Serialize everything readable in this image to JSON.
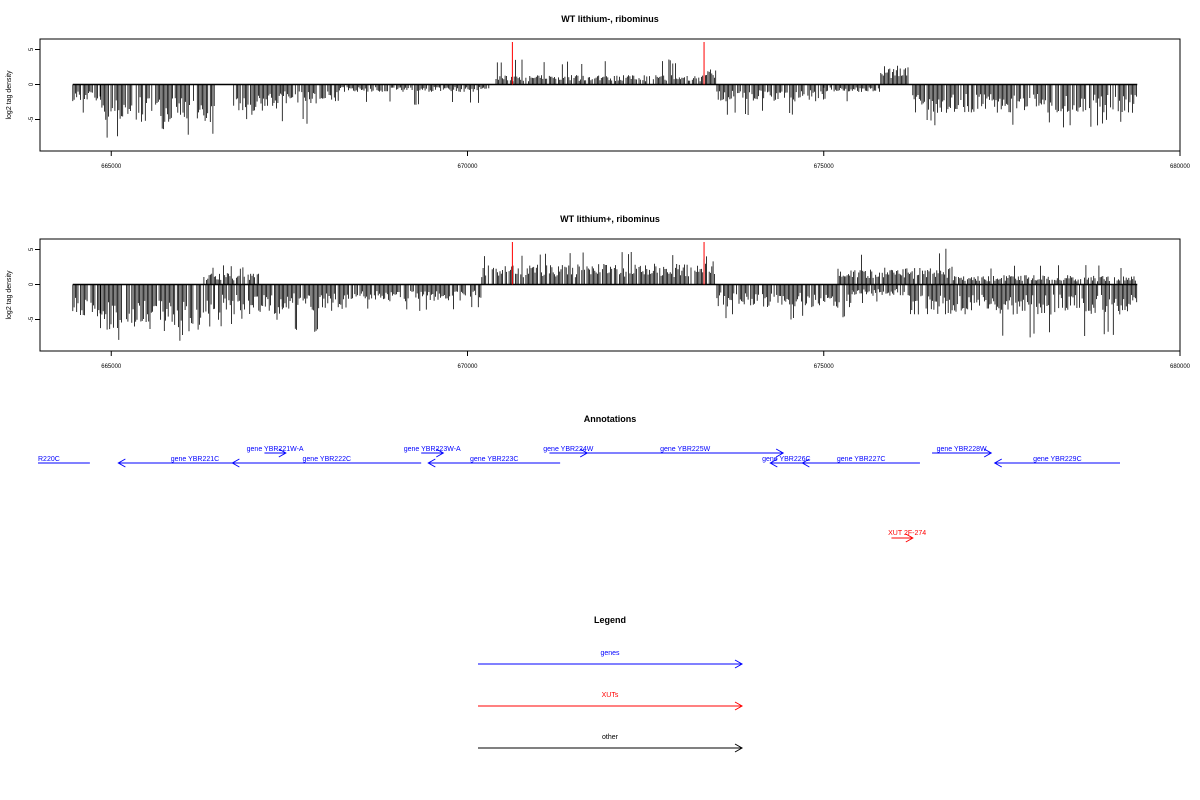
{
  "colors": {
    "gene": "#0000ff",
    "xut": "#ff0000",
    "other": "#000000",
    "boundary": "#ff0000",
    "signal": "#000000"
  },
  "chart_data": [
    {
      "type": "bar",
      "title": "WT lithium-, ribominus",
      "ylabel": "log2 tag density",
      "xlim": [
        664000,
        680000
      ],
      "ylim": [
        -9.5,
        6.5
      ],
      "xticks": [
        "665000",
        "670000",
        "675000",
        "680000"
      ],
      "yticks": [
        "5",
        "0",
        "-5"
      ],
      "xtick_values": [
        665000,
        670000,
        675000,
        680000
      ],
      "ytick_values": [
        5,
        0,
        -5
      ],
      "baseline": 0,
      "region_boundaries": [
        670630,
        673320
      ],
      "segments": [
        {
          "start": 664460,
          "end": 664850,
          "sign": -1,
          "mean": 2.0,
          "max": 4.2
        },
        {
          "start": 664850,
          "end": 665350,
          "sign": -1,
          "mean": 3.8,
          "max": 7.6
        },
        {
          "start": 665350,
          "end": 666450,
          "sign": -1,
          "mean": 4.0,
          "max": 7.2
        },
        {
          "start": 666700,
          "end": 667400,
          "sign": -1,
          "mean": 2.8,
          "max": 5.0
        },
        {
          "start": 667400,
          "end": 668200,
          "sign": -1,
          "mean": 2.0,
          "max": 6.0
        },
        {
          "start": 668200,
          "end": 670300,
          "sign": -1,
          "mean": 0.8,
          "max": 3.0
        },
        {
          "start": 670400,
          "end": 673320,
          "sign": 1,
          "mean": 1.0,
          "max": 3.6
        },
        {
          "start": 673320,
          "end": 673500,
          "sign": 1,
          "mean": 2.0,
          "max": 4.0
        },
        {
          "start": 673500,
          "end": 675000,
          "sign": -1,
          "mean": 1.8,
          "max": 4.5
        },
        {
          "start": 675000,
          "end": 675800,
          "sign": -1,
          "mean": 0.8,
          "max": 2.5
        },
        {
          "start": 675800,
          "end": 676200,
          "sign": 1,
          "mean": 2.0,
          "max": 3.5
        },
        {
          "start": 676250,
          "end": 679400,
          "sign": -1,
          "mean": 3.0,
          "max": 6.2
        }
      ],
      "seed": 17
    },
    {
      "type": "bar",
      "title": "WT lithium+, ribominus",
      "ylabel": "log2 tag density",
      "xlim": [
        664000,
        680000
      ],
      "ylim": [
        -9.5,
        6.5
      ],
      "xticks": [
        "665000",
        "670000",
        "675000",
        "680000"
      ],
      "yticks": [
        "5",
        "0",
        "-5"
      ],
      "xtick_values": [
        665000,
        670000,
        675000,
        680000
      ],
      "ytick_values": [
        5,
        0,
        -5
      ],
      "baseline": 0,
      "region_boundaries": [
        670630,
        673320
      ],
      "segments": [
        {
          "start": 664460,
          "end": 664850,
          "sign": -1,
          "mean": 3.0,
          "max": 5.0
        },
        {
          "start": 664850,
          "end": 666450,
          "sign": -1,
          "mean": 5.0,
          "max": 8.8
        },
        {
          "start": 666450,
          "end": 667400,
          "sign": -1,
          "mean": 3.2,
          "max": 6.0
        },
        {
          "start": 666300,
          "end": 667100,
          "sign": 1,
          "mean": 1.2,
          "max": 2.8
        },
        {
          "start": 667400,
          "end": 668400,
          "sign": -1,
          "mean": 2.8,
          "max": 7.8
        },
        {
          "start": 668400,
          "end": 670200,
          "sign": -1,
          "mean": 1.8,
          "max": 4.0
        },
        {
          "start": 670200,
          "end": 673320,
          "sign": 1,
          "mean": 2.2,
          "max": 4.8
        },
        {
          "start": 673320,
          "end": 673500,
          "sign": 1,
          "mean": 3.0,
          "max": 5.8
        },
        {
          "start": 673500,
          "end": 675400,
          "sign": -1,
          "mean": 2.5,
          "max": 5.3
        },
        {
          "start": 675200,
          "end": 676800,
          "sign": 1,
          "mean": 1.8,
          "max": 5.2
        },
        {
          "start": 675400,
          "end": 676200,
          "sign": -1,
          "mean": 1.2,
          "max": 3.0
        },
        {
          "start": 676200,
          "end": 679400,
          "sign": -1,
          "mean": 3.2,
          "max": 7.8
        },
        {
          "start": 676800,
          "end": 679400,
          "sign": 1,
          "mean": 1.0,
          "max": 2.8
        }
      ],
      "seed": 29
    }
  ],
  "annotations": {
    "title": "Annotations",
    "genes": [
      {
        "label": "R220C",
        "start": 663950,
        "end": 664700,
        "dir": "none",
        "row": 1
      },
      {
        "label": "gene YBR221C",
        "start": 665100,
        "end": 667250,
        "dir": "left",
        "row": 1
      },
      {
        "label": "gene YBR221W-A",
        "start": 667150,
        "end": 667450,
        "dir": "right",
        "row": 0
      },
      {
        "label": "gene YBR222C",
        "start": 666700,
        "end": 669350,
        "dir": "left",
        "row": 1
      },
      {
        "label": "gene YBR223W-A",
        "start": 669350,
        "end": 669660,
        "dir": "right",
        "row": 0
      },
      {
        "label": "gene YBR223C",
        "start": 669450,
        "end": 671300,
        "dir": "left",
        "row": 1
      },
      {
        "label": "gene YBR224W",
        "start": 671150,
        "end": 671680,
        "dir": "right",
        "row": 0
      },
      {
        "label": "gene YBR225W",
        "start": 671680,
        "end": 674430,
        "dir": "right",
        "row": 0
      },
      {
        "label": "gene YBR226C",
        "start": 674250,
        "end": 674700,
        "dir": "left",
        "row": 1
      },
      {
        "label": "gene YBR227C",
        "start": 674700,
        "end": 676350,
        "dir": "left",
        "row": 1
      },
      {
        "label": "gene YBR228W",
        "start": 676520,
        "end": 677350,
        "dir": "right",
        "row": 0
      },
      {
        "label": "gene YBR229C",
        "start": 677400,
        "end": 680000,
        "dir": "left",
        "row": 1
      }
    ],
    "xuts": [
      {
        "label": "XUT 2F-274",
        "start": 675950,
        "end": 676250,
        "dir": "right"
      }
    ]
  },
  "legend": {
    "title": "Legend",
    "items": [
      {
        "label": "genes",
        "color": "#0000ff"
      },
      {
        "label": "XUTs",
        "color": "#ff0000"
      },
      {
        "label": "other",
        "color": "#000000"
      }
    ]
  }
}
